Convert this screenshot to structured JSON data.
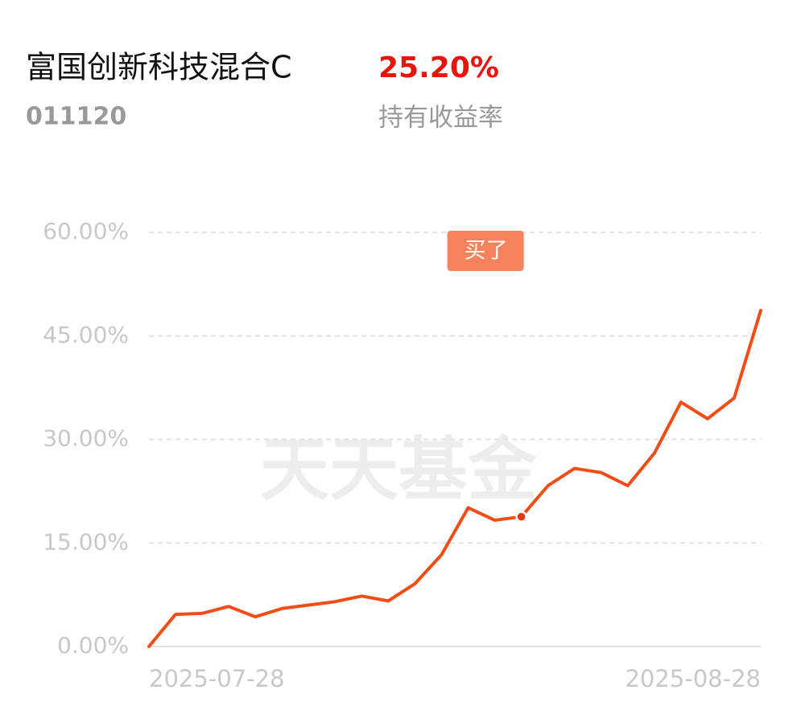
{
  "header": {
    "title": "富国创新科技混合C",
    "code": "011120",
    "return_value": "25.20%",
    "return_label": "持有收益率"
  },
  "chart_data": {
    "type": "line",
    "watermark": "天天基金",
    "categories": [
      "2025-07-28",
      null,
      null,
      null,
      null,
      null,
      null,
      null,
      null,
      null,
      null,
      null,
      null,
      null,
      null,
      null,
      null,
      null,
      null,
      null,
      null,
      null,
      null,
      "2025-08-28"
    ],
    "series": [
      {
        "name": "持有收益率",
        "color": "#f24d16",
        "values": [
          0,
          4.65,
          4.8,
          5.8,
          4.3,
          5.5,
          6.0,
          6.5,
          7.3,
          6.6,
          9.1,
          13.3,
          20.1,
          18.3,
          18.8,
          23.3,
          25.8,
          25.2,
          23.3,
          28.0,
          35.4,
          33.0,
          36.0,
          48.7
        ]
      }
    ],
    "annotation": {
      "text": "买了",
      "at": 14,
      "color": "#f5825a"
    },
    "ylim": [
      0,
      60
    ],
    "yticks": [
      {
        "value": 0,
        "label": "0.00%"
      },
      {
        "value": 15,
        "label": "15.00%"
      },
      {
        "value": 30,
        "label": "30.00%"
      },
      {
        "value": 45,
        "label": "45.00%"
      },
      {
        "value": 60,
        "label": "60.00%"
      }
    ],
    "grid": true
  }
}
